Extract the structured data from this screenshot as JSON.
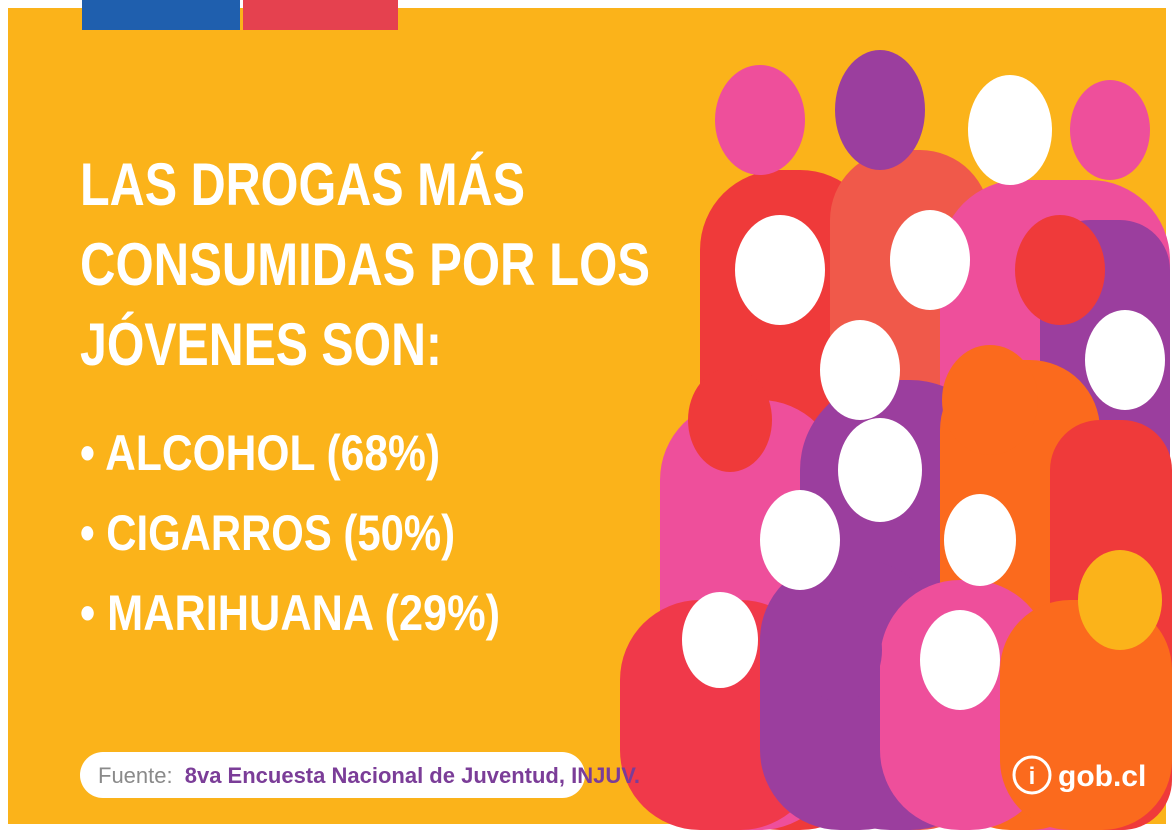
{
  "title": [
    "LAS DROGAS MÁS",
    "CONSUMIDAS POR LOS",
    "JÓVENES SON:"
  ],
  "items": [
    "• ALCOHOL (68%)",
    "• CIGARROS (50%)",
    "• MARIHUANA (29%)"
  ],
  "source": {
    "label": "Fuente:",
    "text": "8va Encuesta Nacional de Juventud, INJUV."
  },
  "logo": {
    "icon": "i",
    "text": "gob.cl"
  }
}
